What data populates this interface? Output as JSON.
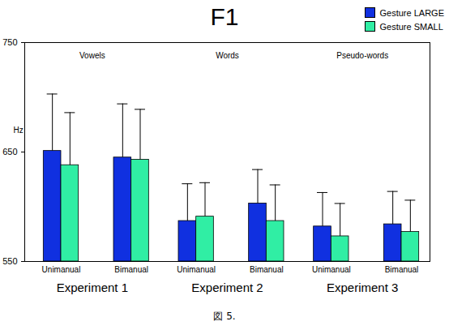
{
  "chart_data": {
    "type": "bar",
    "title": "F1",
    "y_label": "Hz",
    "caption": "図 5.",
    "categories": [
      "Unimanual",
      "Bimanual"
    ],
    "panels": [
      {
        "title": "Vowels",
        "label": "Experiment 1"
      },
      {
        "title": "Words",
        "label": "Experiment 2"
      },
      {
        "title": "Pseudo-words",
        "label": "Experiment 3"
      }
    ],
    "series": [
      {
        "name": "Gesture LARGE",
        "color": "#1030e0",
        "values": [
          [
            651,
            645
          ],
          [
            587,
            603
          ],
          [
            582,
            584
          ]
        ],
        "errors": [
          [
            52,
            49
          ],
          [
            34,
            31
          ],
          [
            31,
            30
          ]
        ]
      },
      {
        "name": "Gesture SMALL",
        "color": "#30eea4",
        "values": [
          [
            638,
            643
          ],
          [
            591,
            587
          ],
          [
            573,
            577
          ]
        ],
        "errors": [
          [
            48,
            46
          ],
          [
            31,
            33
          ],
          [
            30,
            29
          ]
        ]
      }
    ],
    "ylim": [
      550,
      750
    ],
    "yticks": [
      550,
      650,
      750
    ],
    "grid": false,
    "legend": "top-right"
  }
}
